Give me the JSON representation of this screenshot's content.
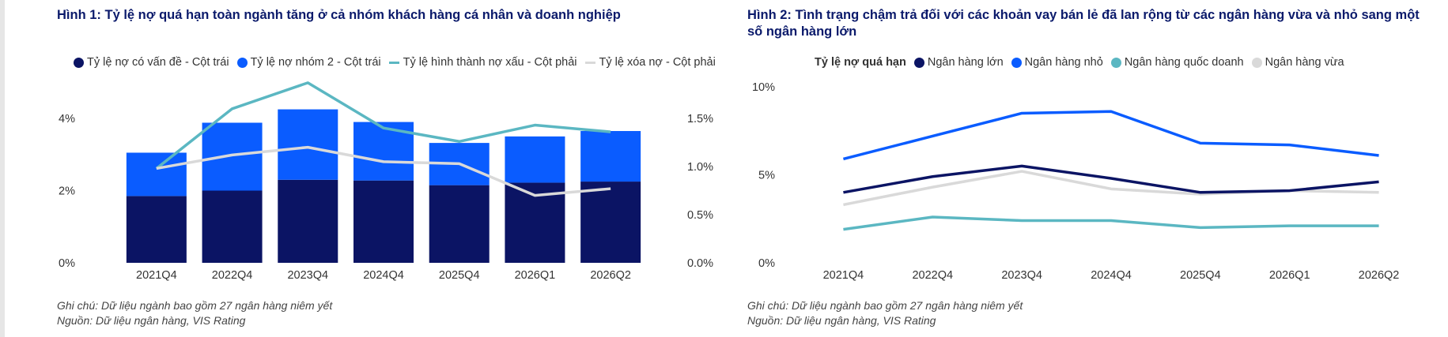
{
  "colors": {
    "navy": "#0b1464",
    "blue": "#0a5cff",
    "teal": "#5bb7c2",
    "grey": "#d9d9d9",
    "title": "#0b1a6b"
  },
  "panel1": {
    "title": "Hình 1: Tỷ lệ nợ quá hạn toàn ngành tăng ở cả nhóm khách hàng cá nhân và doanh nghiệp",
    "legend": [
      {
        "label": "Tỷ lệ nợ có vấn đề - Cột trái",
        "marker": "dot",
        "color": "#0b1464"
      },
      {
        "label": "Tỷ lệ nợ nhóm 2 - Cột trái",
        "marker": "dot",
        "color": "#0a5cff"
      },
      {
        "label": "Tỷ lệ hình thành nợ xấu - Cột phải",
        "marker": "line",
        "color": "#5bb7c2"
      },
      {
        "label": "Tỷ lệ xóa nợ - Cột phải",
        "marker": "line",
        "color": "#d9d9d9"
      }
    ],
    "note": "Ghi chú: Dữ liệu ngành bao gồm 27 ngân hàng niêm yết",
    "source": "Nguồn: Dữ liệu ngân hàng, VIS Rating"
  },
  "panel2": {
    "title_line1": "Hình 2: Tình trạng chậm trả đối với các khoản vay bán lẻ đã lan rộng từ các ngân hàng vừa và nhỏ sang một",
    "title_line2": "số ngân hàng lớn",
    "legend_head": "Tỷ lệ nợ quá hạn",
    "legend": [
      {
        "label": "Ngân hàng lớn",
        "color": "#0b1464"
      },
      {
        "label": "Ngân hàng nhỏ",
        "color": "#0a5cff"
      },
      {
        "label": "Ngân hàng quốc doanh",
        "color": "#5bb7c2"
      },
      {
        "label": "Ngân hàng vừa",
        "color": "#d9d9d9"
      }
    ],
    "note": "Ghi chú: Dữ liệu ngành bao gồm 27 ngân hàng niêm yết",
    "source": "Nguồn: Dữ liệu ngân hàng, VIS Rating"
  },
  "chart_data": [
    {
      "type": "bar",
      "stacked": true,
      "categories": [
        "2021Q4",
        "2022Q4",
        "2023Q4",
        "2024Q4",
        "2025Q4",
        "2026Q1",
        "2026Q2"
      ],
      "series": [
        {
          "name": "Tỷ lệ nợ có vấn đề - Cột trái",
          "axis": "left",
          "type": "bar",
          "values": [
            1.85,
            2.0,
            2.3,
            2.28,
            2.15,
            2.22,
            2.25
          ]
        },
        {
          "name": "Tỷ lệ nợ nhóm 2 - Cột trái",
          "axis": "left",
          "type": "bar",
          "values": [
            1.2,
            1.88,
            1.95,
            1.62,
            1.17,
            1.28,
            1.4
          ]
        },
        {
          "name": "Tỷ lệ hình thành nợ xấu - Cột phải",
          "axis": "right",
          "type": "line",
          "values": [
            0.98,
            1.6,
            1.87,
            1.4,
            1.26,
            1.43,
            1.36
          ]
        },
        {
          "name": "Tỷ lệ xóa nợ - Cột phải",
          "axis": "right",
          "type": "line",
          "values": [
            0.98,
            1.12,
            1.2,
            1.05,
            1.03,
            0.7,
            0.77
          ]
        }
      ],
      "ylim_left": [
        0,
        4
      ],
      "yticks_left": [
        "0%",
        "2%",
        "4%"
      ],
      "ylim_right": [
        0,
        1.5
      ],
      "yticks_right": [
        "0.0%",
        "0.5%",
        "1.0%",
        "1.5%"
      ],
      "grid": false,
      "legend_position": "top"
    },
    {
      "type": "line",
      "title": "Tỷ lệ nợ quá hạn",
      "categories": [
        "2021Q4",
        "2022Q4",
        "2023Q4",
        "2024Q4",
        "2025Q4",
        "2026Q1",
        "2026Q2"
      ],
      "series": [
        {
          "name": "Ngân hàng lớn",
          "values": [
            4.0,
            4.9,
            5.5,
            4.8,
            4.0,
            4.1,
            4.6
          ]
        },
        {
          "name": "Ngân hàng nhỏ",
          "values": [
            5.9,
            7.2,
            8.5,
            8.6,
            6.8,
            6.7,
            6.1
          ]
        },
        {
          "name": "Ngân hàng quốc doanh",
          "values": [
            1.9,
            2.6,
            2.4,
            2.4,
            2.0,
            2.1,
            2.1
          ]
        },
        {
          "name": "Ngân hàng vừa",
          "values": [
            3.3,
            4.3,
            5.2,
            4.2,
            3.9,
            4.1,
            4.0
          ]
        }
      ],
      "ylim": [
        0,
        10
      ],
      "yticks": [
        "0%",
        "5%",
        "10%"
      ],
      "grid": false,
      "legend_position": "top"
    }
  ]
}
